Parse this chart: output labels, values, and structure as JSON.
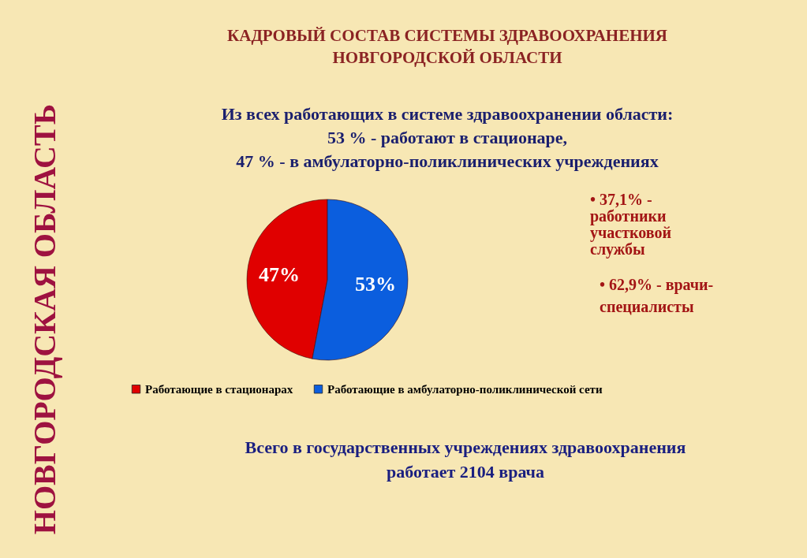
{
  "chart_data": {
    "type": "pie",
    "title": "КАДРОВЫЙ СОСТАВ СИСТЕМЫ ЗДРАВООХРАНЕНИЯ\nНОВГОРОДСКОЙ ОБЛАСТИ",
    "subtitle": "Из всех работающих в системе здравоохранении области:\n53 % - работают в стационаре,\n47 % - в амбулаторно-поликлинических учреждениях",
    "categories": [
      "Работающие в стационарах",
      "Работающие в амбулаторно-поликлинической сети"
    ],
    "values": [
      47,
      53
    ],
    "colors": [
      "#e00000",
      "#0b5ede"
    ],
    "value_labels": [
      "47%",
      "53%"
    ],
    "legend": "bottom",
    "annotations": [
      "НОВГОРОДСКАЯ ОБЛАСТЬ",
      "• 37,1% -\nработники\nучастковой\nслужбы",
      "• 62,9% - врачи-\nспециалисты",
      "Всего в государственных учреждениях здравоохранения\nработает 2104 врача"
    ]
  }
}
